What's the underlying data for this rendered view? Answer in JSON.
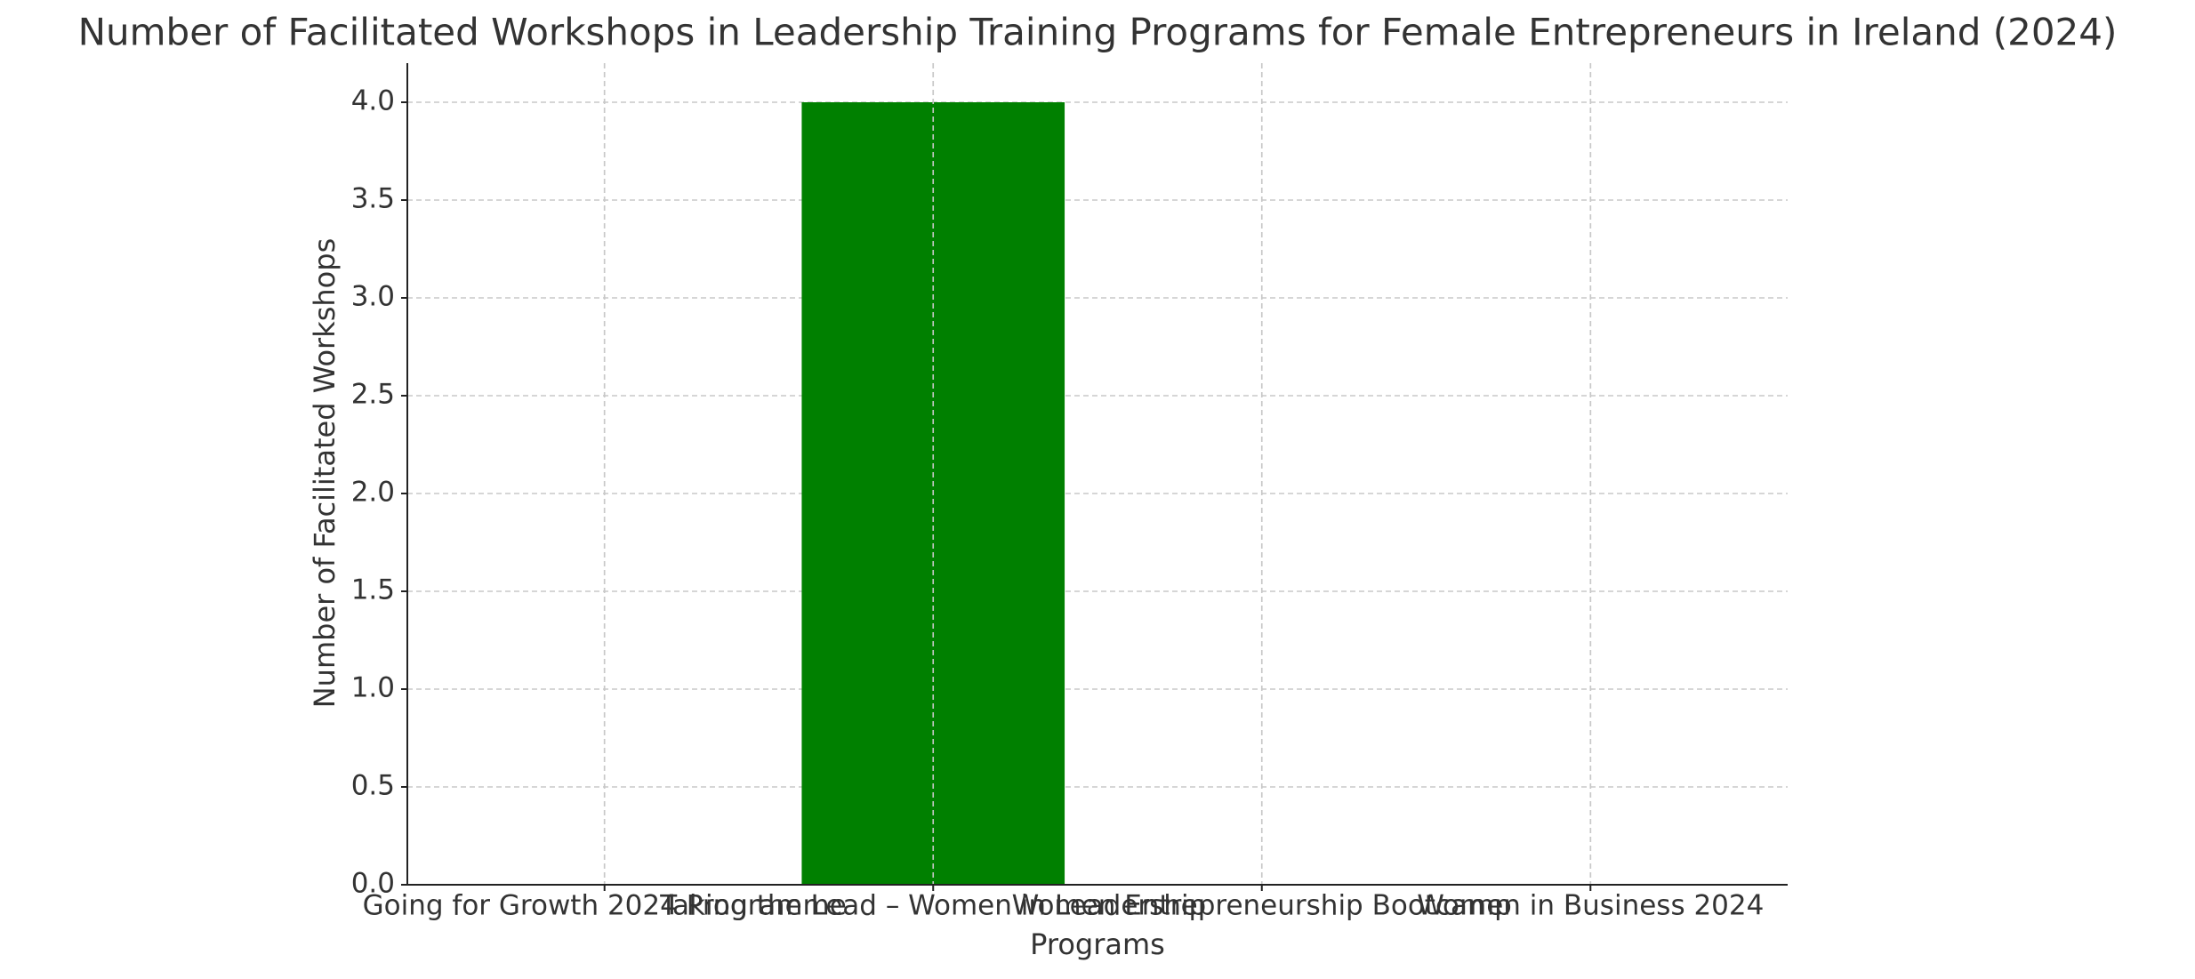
{
  "chart_data": {
    "type": "bar",
    "title": "Number of Facilitated Workshops in Leadership Training Programs for Female Entrepreneurs in Ireland (2024)",
    "x_label": "Programs",
    "y_label": "Number of Facilitated Workshops",
    "categories": [
      "Going for Growth 2024 Programme",
      "Taking the Lead – Women in Leadership",
      "Women Entrepreneurship Bootcamp",
      "Women in Business 2024"
    ],
    "values": [
      0,
      4,
      0,
      0
    ],
    "color": "#008000",
    "ylim": [
      0,
      4.2
    ],
    "yticks": [
      {
        "value": 0,
        "label": "0.0"
      },
      {
        "value": 0.5,
        "label": "0.5"
      },
      {
        "value": 1,
        "label": "1.0"
      },
      {
        "value": 1.5,
        "label": "1.5"
      },
      {
        "value": 2,
        "label": "2.0"
      },
      {
        "value": 2.5,
        "label": "2.5"
      },
      {
        "value": 3,
        "label": "3.0"
      },
      {
        "value": 3.5,
        "label": "3.5"
      },
      {
        "value": 4,
        "label": "4.0"
      }
    ],
    "grid": true
  }
}
